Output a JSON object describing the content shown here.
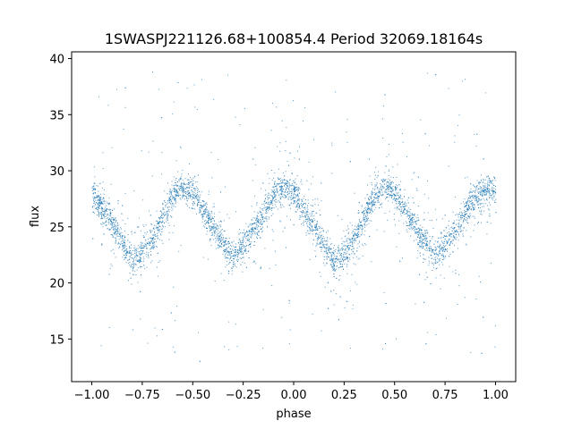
{
  "chart_data": {
    "type": "scatter",
    "title": "1SWASPJ221126.68+100854.4 Period 32069.18164s",
    "xlabel": "phase",
    "ylabel": "flux",
    "xlim": [
      -1.1,
      1.1
    ],
    "ylim": [
      11.2,
      40.6
    ],
    "x_ticks": [
      -1.0,
      -0.75,
      -0.5,
      -0.25,
      0.0,
      0.25,
      0.5,
      0.75,
      1.0
    ],
    "x_tick_labels": [
      "−1.00",
      "−0.75",
      "−0.50",
      "−0.25",
      "0.00",
      "0.25",
      "0.50",
      "0.75",
      "1.00"
    ],
    "y_ticks": [
      15,
      20,
      25,
      30,
      35,
      40
    ],
    "y_tick_labels": [
      "15",
      "20",
      "25",
      "30",
      "35",
      "40"
    ],
    "grid": false,
    "marker_color": "#1f77b4",
    "series": [
      {
        "x": [
          -1.0,
          -0.9,
          -0.8,
          -0.7,
          -0.6,
          -0.55,
          -0.5,
          -0.4,
          -0.3,
          -0.2,
          -0.1,
          -0.05,
          0.0,
          0.1,
          0.2,
          0.3,
          0.4,
          0.45,
          0.5,
          0.6,
          0.7,
          0.8,
          0.9,
          1.0
        ],
        "y": [
          28.0,
          25.5,
          21.8,
          24.0,
          27.8,
          28.6,
          28.0,
          25.0,
          22.3,
          24.8,
          27.8,
          28.5,
          28.0,
          25.0,
          21.8,
          24.0,
          27.8,
          28.6,
          28.0,
          25.0,
          22.3,
          24.8,
          27.8,
          28.3
        ]
      }
    ]
  }
}
